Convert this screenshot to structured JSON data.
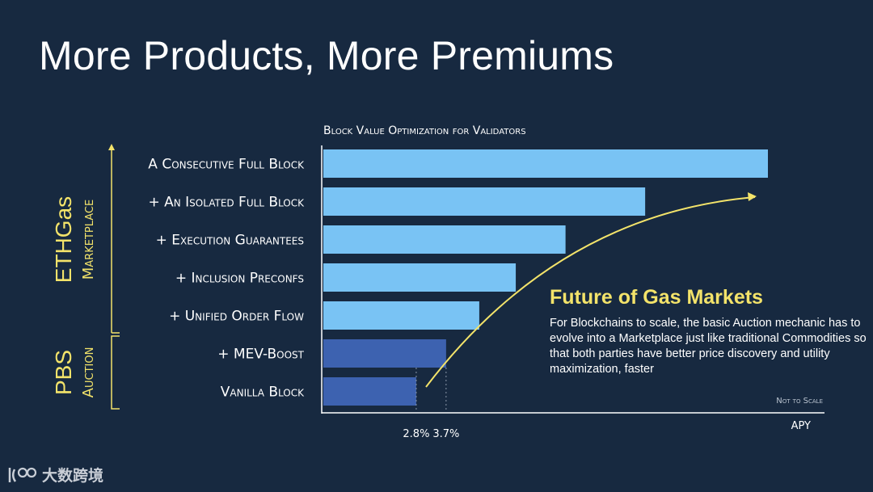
{
  "slide": {
    "title": "More Products, More Premiums"
  },
  "chart_data": {
    "type": "bar",
    "orientation": "horizontal",
    "title": "Block Value Optimization for Validators",
    "xlabel": "APY",
    "note": "Not to Scale",
    "categories": [
      "A Consecutive Full Block",
      "+ An Isolated Full Block",
      "+ Execution Guarantees",
      "+ Inclusion Preconfs",
      "+ Unified Order Flow",
      "+ MEV-Boost",
      "Vanilla Block"
    ],
    "values": [
      13.4,
      9.7,
      7.3,
      5.8,
      4.7,
      3.7,
      2.8
    ],
    "xlim": [
      0,
      13.4
    ],
    "tick_labels": [
      {
        "value": 2.8,
        "label": "2.8%"
      },
      {
        "value": 3.7,
        "label": "3.7%"
      }
    ],
    "groups": [
      {
        "name": "ETHGas",
        "sub": "Marketplace",
        "from": 0,
        "to": 4
      },
      {
        "name": "PBS",
        "sub": "Auction",
        "from": 5,
        "to": 6
      }
    ],
    "colors": {
      "marketplace_bar": "#79c3f4",
      "auction_bar": "#3d62b0",
      "group_label": "#f3e36a",
      "arrow": "#f3e36a",
      "axis": "#ffffff"
    }
  },
  "callout": {
    "title": "Future of Gas Markets",
    "body": "For Blockchains to scale, the basic Auction mechanic has to evolve into a Marketplace just like traditional Commodities so that both parties have better price discovery and utility maximization, faster"
  },
  "logo": {
    "text": "大数跨境",
    "icon": "logo-icon"
  }
}
